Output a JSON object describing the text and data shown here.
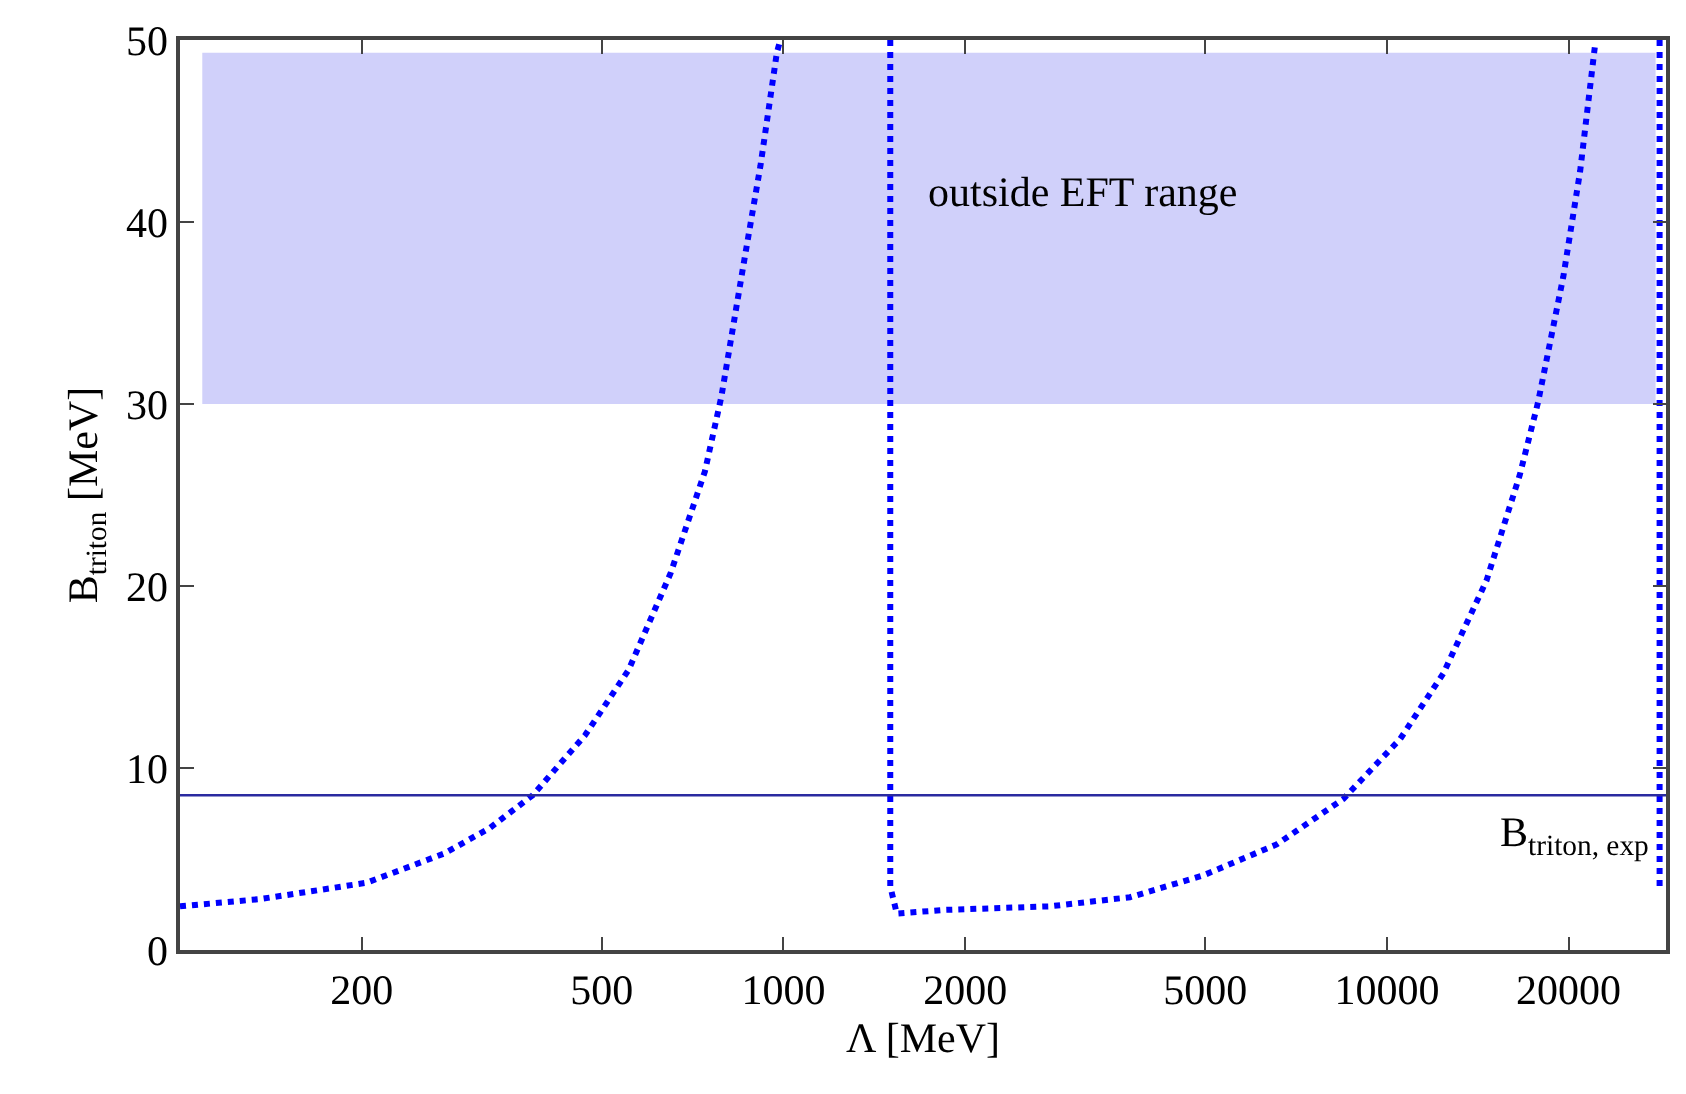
{
  "chart_data": {
    "type": "line",
    "xlabel": "Λ [MeV]",
    "ylabel": "B$_{triton}$ [MeV]",
    "log": "x",
    "xlim": [
      100,
      29000
    ],
    "xticks": [
      200,
      500,
      1000,
      2000,
      5000,
      10000,
      20000
    ],
    "ylim": [
      0,
      50
    ],
    "yticks": [
      0,
      10,
      20,
      30,
      40,
      50
    ],
    "grid": false,
    "marker": "none",
    "line_style": "dotted",
    "series": [
      {
        "color": "#0000ff",
        "x": [
          100,
          136,
          204,
          274,
          326,
          384,
          469,
          554,
          650,
          741,
          789,
          859,
          916,
          975,
          988
        ],
        "values": [
          2.4,
          2.8,
          3.7,
          5.3,
          6.7,
          8.5,
          11.8,
          15.4,
          20.7,
          26.3,
          30.4,
          37.7,
          43.1,
          49.3,
          50
        ]
      },
      {
        "color": "#0000ff",
        "x": [
          1503,
          1503,
          1541,
          1841,
          2765,
          3752,
          4962,
          6564,
          8467,
          10520,
          12400,
          14620,
          16600,
          17800,
          19600,
          20900,
          22100
        ],
        "values": [
          50,
          3.5,
          2.0,
          2.2,
          2.4,
          2.9,
          4.1,
          5.8,
          8.3,
          11.6,
          15.2,
          20.3,
          26.1,
          30.1,
          37.0,
          42.8,
          49.6
        ]
      },
      {
        "color": "#0000ff",
        "x": [
          28300,
          28300
        ],
        "values": [
          50,
          3.3
        ]
      }
    ],
    "ref_lines": [
      {
        "axis": "y",
        "value": 8.5,
        "label": "B$_{triton, exp}$",
        "color": "#2a2aa0"
      }
    ],
    "bands": [
      {
        "axis": "y",
        "from": 30,
        "to": 49.3,
        "label": "outside EFT range",
        "color": "#d0d0fa"
      }
    ]
  }
}
